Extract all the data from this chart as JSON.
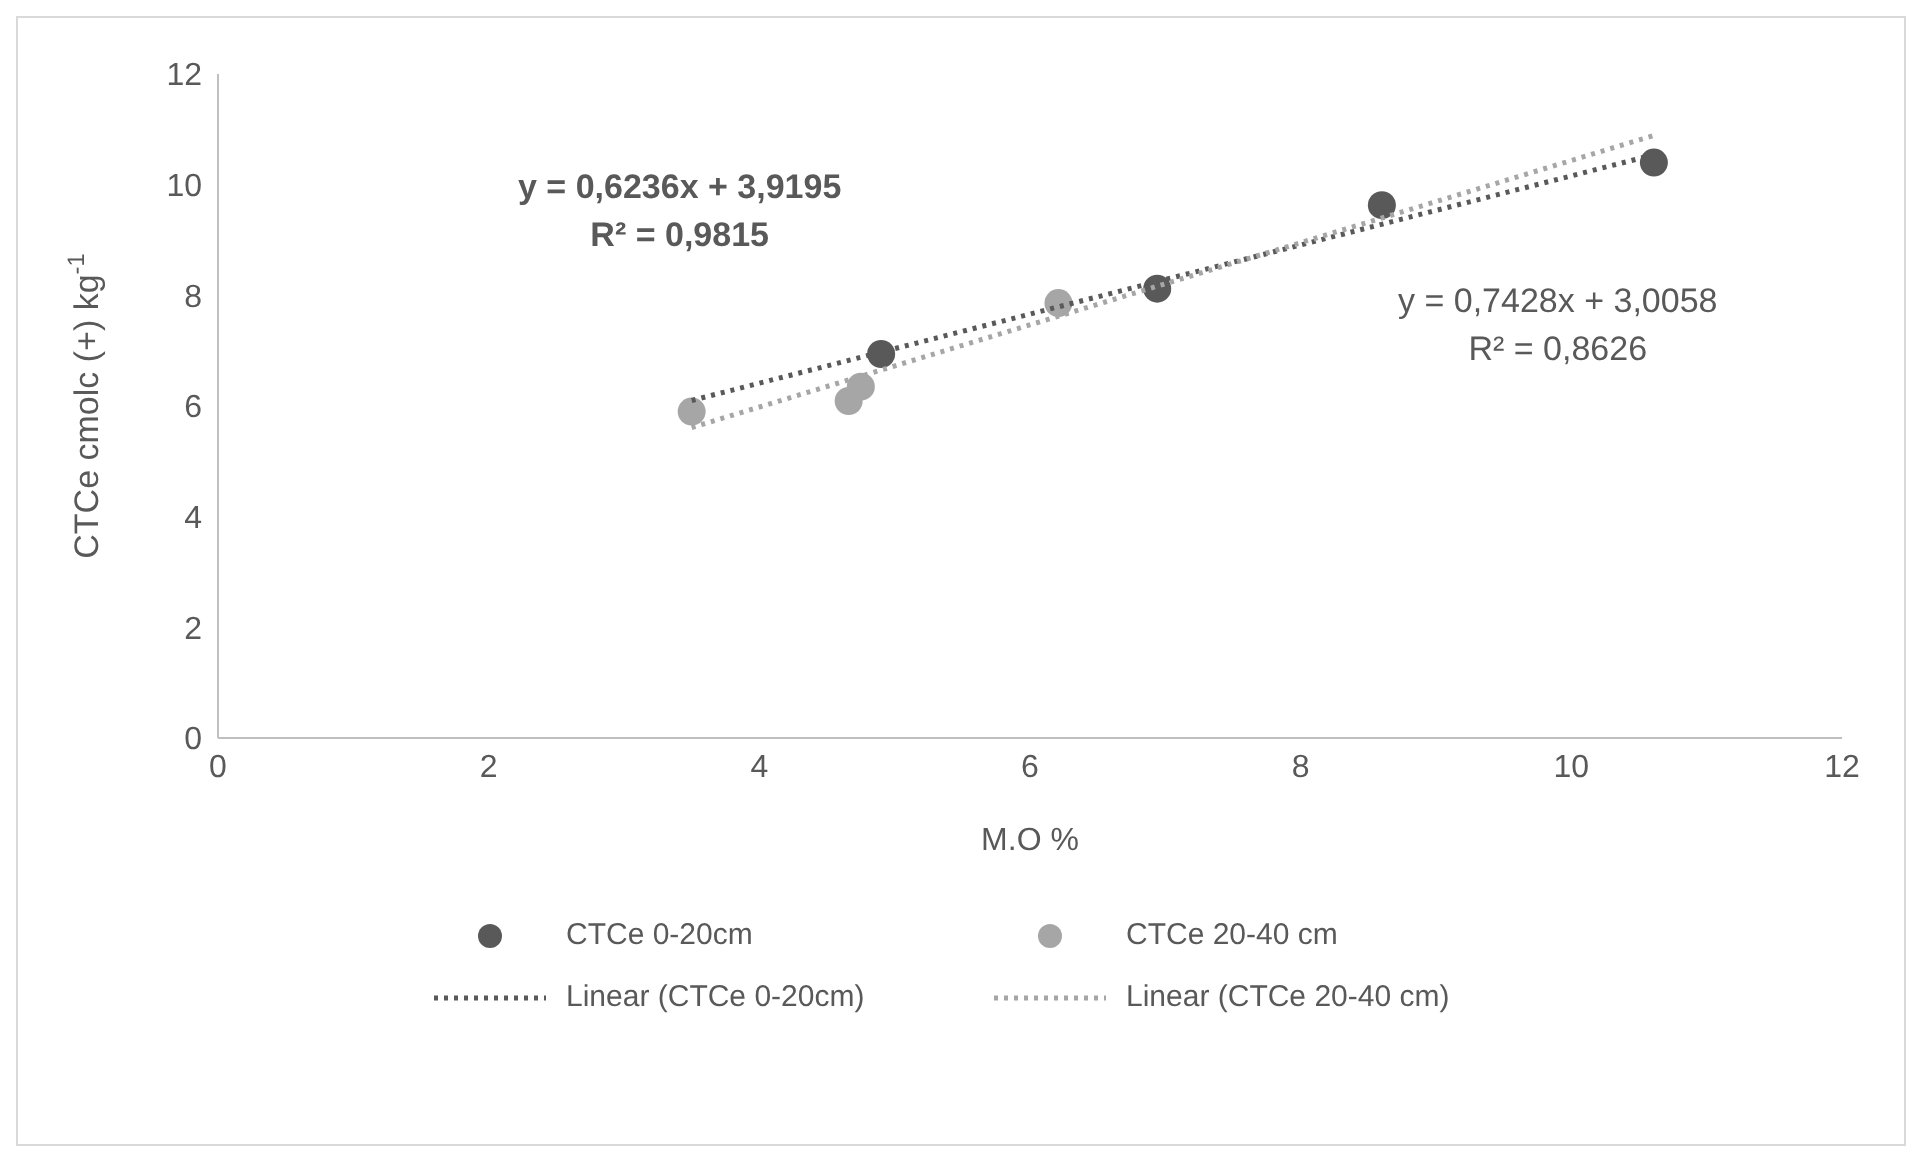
{
  "chart_data": {
    "type": "scatter",
    "xlabel": "M.O %",
    "ylabel": "CTCe cmolc (+) kg$^{-1}$",
    "xlim": [
      0,
      12
    ],
    "xticks": [
      0,
      2,
      4,
      6,
      8,
      10,
      12
    ],
    "ylim": [
      0,
      12
    ],
    "yticks": [
      0,
      2,
      4,
      6,
      8,
      10,
      12
    ],
    "legend": "bottom",
    "annotations": [
      "y = 0,6236x + 3,9195\nR² = 0,9815",
      "y = 0,7428x + 3,0058\nR² = 0,8626"
    ],
    "series": [
      {
        "name": "CTCe 0-20cm",
        "marker": "circle",
        "color": "#595959",
        "x": [
          4.9,
          6.94,
          8.6,
          10.61
        ],
        "values": [
          6.94,
          8.12,
          9.63,
          10.4
        ]
      },
      {
        "name": "CTCe 20-40 cm",
        "marker": "circle",
        "color": "#a6a6a6",
        "x": [
          3.5,
          4.66,
          4.75,
          6.21
        ],
        "values": [
          5.9,
          6.09,
          6.35,
          7.86
        ]
      },
      {
        "name": "Linear (CTCe 0-20cm)",
        "type": "line",
        "line_style": "dotted",
        "color": "#595959",
        "x": [
          3.5,
          10.61
        ],
        "values": [
          6.1,
          10.54
        ]
      },
      {
        "name": "Linear (CTCe 20-40 cm)",
        "type": "line",
        "line_style": "dotted",
        "color": "#a6a6a6",
        "x": [
          3.5,
          10.61
        ],
        "values": [
          5.61,
          10.89
        ]
      }
    ]
  }
}
